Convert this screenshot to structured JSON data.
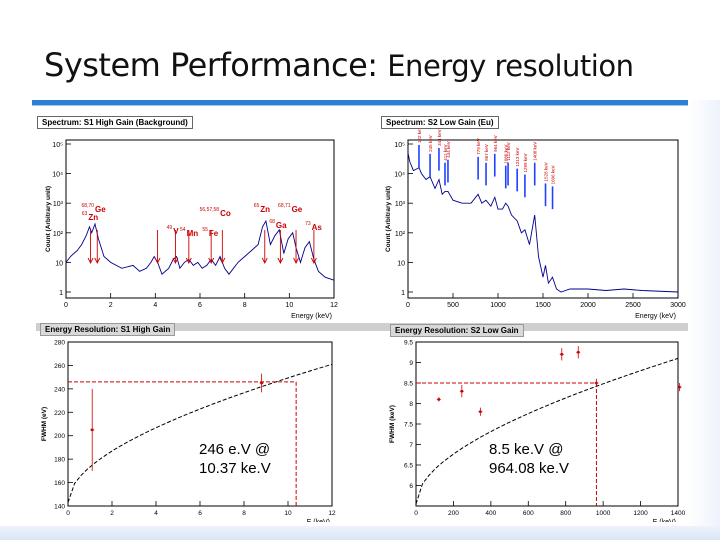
{
  "slide": {
    "title_main": "System Performance:",
    "title_sub": "Energy resolution"
  },
  "colors": {
    "accent": "#2d7fd2",
    "spectrum": "#00008b",
    "fit_marker": "#cc0000",
    "arrow": "#cc0000",
    "blue_peak": "#2040ff"
  },
  "chart_data": [
    {
      "type": "line",
      "title": "Spectrum: S1 High Gain (Background)",
      "xlabel": "Energy (keV)",
      "ylabel": "Count (Arbitrary unit)",
      "xlim": [
        0,
        12
      ],
      "ylim_log": [
        1,
        100000
      ],
      "xticks": [
        "0",
        "2",
        "4",
        "6",
        "8",
        "10",
        "12"
      ],
      "yticks": [
        "1",
        "10",
        "10²",
        "10³",
        "10⁴",
        "10⁵"
      ],
      "yticks_exp": [
        0,
        1,
        2,
        3,
        4,
        5
      ],
      "peak_labels": [
        {
          "sup": "63",
          "label": "Zn",
          "x": 1.0
        },
        {
          "sup": "68,70",
          "label": "Ge",
          "x": 1.3
        },
        {
          "sup": "56,57,58",
          "label": "Co",
          "x": 6.9
        },
        {
          "sup": "49",
          "label": "V",
          "x": 4.8
        },
        {
          "sup": "54",
          "label": "Mn",
          "x": 5.4
        },
        {
          "sup": "55",
          "label": "Fe",
          "x": 6.4
        },
        {
          "sup": "65",
          "label": "Zn",
          "x": 8.7
        },
        {
          "sup": "68,71",
          "label": "Ge",
          "x": 10.1
        },
        {
          "sup": "68",
          "label": "Ga",
          "x": 9.4
        },
        {
          "sup": "73",
          "label": "As",
          "x": 11.0
        }
      ],
      "arrows_x": [
        1.1,
        1.4,
        4.1,
        4.9,
        5.5,
        6.5,
        7.0,
        8.9,
        9.6,
        10.3,
        11.1
      ],
      "series": [
        {
          "name": "S1 spectrum",
          "x": [
            0.0,
            0.2,
            0.35,
            0.5,
            0.7,
            0.9,
            1.05,
            1.15,
            1.3,
            1.45,
            1.7,
            2.0,
            2.5,
            3.0,
            3.3,
            3.6,
            3.8,
            3.95,
            4.1,
            4.3,
            4.6,
            4.8,
            4.95,
            5.1,
            5.3,
            5.5,
            5.7,
            5.9,
            6.1,
            6.3,
            6.5,
            6.7,
            6.9,
            7.1,
            7.3,
            7.5,
            7.7,
            8.0,
            8.3,
            8.6,
            8.8,
            8.95,
            9.15,
            9.35,
            9.55,
            9.75,
            9.95,
            10.15,
            10.3,
            10.5,
            10.7,
            10.9,
            11.1,
            11.3,
            11.6,
            12.0
          ],
          "y": [
            1,
            1.2,
            1.3,
            1.4,
            1.6,
            1.9,
            2.2,
            2.0,
            2.3,
            1.8,
            1.2,
            1.0,
            0.8,
            0.9,
            0.7,
            0.8,
            1.0,
            1.2,
            1.0,
            0.6,
            0.8,
            1.1,
            1.2,
            0.8,
            1.0,
            1.1,
            0.9,
            1.0,
            0.8,
            0.9,
            1.1,
            0.9,
            1.2,
            0.8,
            0.6,
            0.8,
            1.0,
            1.2,
            1.4,
            1.6,
            2.2,
            2.4,
            1.6,
            1.9,
            2.1,
            1.3,
            1.8,
            2.0,
            1.5,
            1.0,
            1.5,
            1.7,
            1.1,
            0.7,
            0.5,
            0.4
          ]
        }
      ]
    },
    {
      "type": "line",
      "title": "Spectrum: S2 Low Gain (Eu)",
      "xlabel": "Energy (keV)",
      "ylabel": "Count (Arbitrary unit)",
      "xlim": [
        0,
        3000
      ],
      "ylim_log": [
        1,
        100000
      ],
      "xticks": [
        "0",
        "500",
        "1000",
        "1500",
        "2000",
        "2500",
        "3000"
      ],
      "yticks": [
        "1",
        "10",
        "10²",
        "10³",
        "10⁴",
        "10⁵"
      ],
      "yticks_exp": [
        0,
        1,
        2,
        3,
        4,
        5
      ],
      "peak_energies_label": [
        "122 keV",
        "245 keV",
        "344 keV",
        "411 keV",
        "444 keV",
        "779 keV",
        "867 keV",
        "964 keV",
        "1086 keV",
        "1112 keV",
        "1213 keV",
        "1299 keV",
        "1408 keV",
        "1528 keV",
        "1606 keV"
      ],
      "peak_energies": [
        122,
        245,
        344,
        411,
        444,
        779,
        867,
        964,
        1086,
        1112,
        1213,
        1299,
        1408,
        1528,
        1606
      ],
      "series": [
        {
          "name": "S2 spectrum",
          "x": [
            0,
            20,
            60,
            122,
            150,
            200,
            245,
            300,
            344,
            380,
            411,
            444,
            500,
            600,
            700,
            779,
            820,
            867,
            920,
            964,
            1000,
            1050,
            1086,
            1112,
            1150,
            1213,
            1260,
            1299,
            1350,
            1408,
            1450,
            1500,
            1528,
            1560,
            1606,
            1650,
            1700,
            1800,
            2000,
            2200,
            2400,
            2600,
            3000
          ],
          "y": [
            4.7,
            4.4,
            4.1,
            4.2,
            4.0,
            3.8,
            3.9,
            3.5,
            3.8,
            3.3,
            3.4,
            3.4,
            3.1,
            3.0,
            3.0,
            3.3,
            3.0,
            3.1,
            2.9,
            3.2,
            2.8,
            2.8,
            3.0,
            2.9,
            2.6,
            2.4,
            2.0,
            2.1,
            1.6,
            2.6,
            1.2,
            0.5,
            0.9,
            0.3,
            0.5,
            0.1,
            0.0,
            0.1,
            0.1,
            0.05,
            0.1,
            0.05,
            0.0
          ]
        }
      ]
    },
    {
      "type": "line",
      "title": "Energy Resolution: S1 High Gain",
      "xlabel": "E (keV)",
      "ylabel": "FWHM (eV)",
      "xlim": [
        0,
        12
      ],
      "ylim": [
        140,
        280
      ],
      "xticks": [
        "0",
        "2",
        "4",
        "6",
        "8",
        "10",
        "12"
      ],
      "yticks": [
        "140",
        "160",
        "180",
        "200",
        "220",
        "240",
        "260",
        "280"
      ],
      "points": [
        {
          "x": 1.1,
          "y": 205,
          "err": 35
        },
        {
          "x": 8.8,
          "y": 245,
          "err": 8
        }
      ],
      "marker": {
        "x": 10.37,
        "y": 246
      },
      "fit": {
        "x0": 0,
        "y0": 143,
        "x1": 12,
        "y1": 261
      },
      "annotation": [
        "246 e.V @",
        "10.37 ke.V"
      ]
    },
    {
      "type": "line",
      "title": "Energy Resolution: S2 Low Gain",
      "xlabel": "E (keV)",
      "ylabel": "FWHM (keV)",
      "xlim": [
        0,
        1400
      ],
      "ylim": [
        5.5,
        9.5
      ],
      "xticks": [
        "0",
        "200",
        "400",
        "600",
        "800",
        "1000",
        "1200",
        "1400"
      ],
      "yticks": [
        "6",
        "6.5",
        "7",
        "7.5",
        "8",
        "8.5",
        "9",
        "9.5"
      ],
      "points": [
        {
          "x": 122,
          "y": 8.1,
          "err": 0.05
        },
        {
          "x": 245,
          "y": 8.3,
          "err": 0.15
        },
        {
          "x": 344,
          "y": 7.8,
          "err": 0.1
        },
        {
          "x": 779,
          "y": 9.2,
          "err": 0.15
        },
        {
          "x": 867,
          "y": 9.25,
          "err": 0.15
        },
        {
          "x": 964,
          "y": 8.5,
          "err": 0.1
        },
        {
          "x": 1408,
          "y": 8.4,
          "err": 0.1
        }
      ],
      "marker": {
        "x": 964.08,
        "y": 8.5
      },
      "fit": {
        "x0": 0,
        "y0": 5.55,
        "x1": 1400,
        "y1": 9.1
      },
      "annotation": [
        "8.5 ke.V @",
        "964.08 ke.V"
      ]
    }
  ]
}
